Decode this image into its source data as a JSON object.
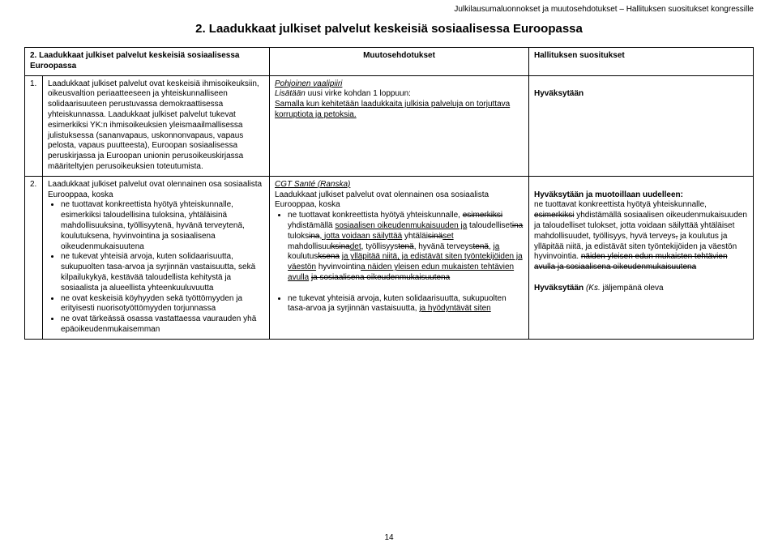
{
  "header": "Julkilausumaluonnokset ja muutosehdotukset – Hallituksen suositukset kongressille",
  "title": "2. Laadukkaat julkiset palvelut keskeisiä sosiaalisessa Euroopassa",
  "pagenum": "14",
  "table": {
    "head": {
      "col1": "2. Laadukkaat julkiset palvelut keskeisiä sosiaalisessa Euroopassa",
      "col2": "Muutosehdotukset",
      "col3": "Hallituksen suositukset"
    },
    "row1": {
      "num": "1.",
      "col1": "Laadukkaat julkiset palvelut ovat keskeisiä ihmisoikeuksiin, oikeusvaltion periaatteeseen ja yhteiskunnalliseen solidaarisuuteen perustuvassa demokraattisessa yhteiskunnassa. Laadukkaat julkiset palvelut tukevat esimerkiksi YK:n ihmisoikeuksien yleismaailmallisessa julistuksessa (sananvapaus, uskonnonvapaus, vapaus pelosta, vapaus puutteesta), Euroopan sosiaalisessa peruskirjassa ja Euroopan unionin perusoikeuskirjassa määriteltyjen perusoikeuksien toteutumista.",
      "col2_heading": "Pohjoinen vaalipiiri",
      "col2_line": "Lisätään",
      "col2_line_plain": " uusi virke kohdan 1 loppuun:",
      "col2_u1": "Samalla kun kehitetään laadukkaita julkisia palveluja on torjuttava korruptiota ja petoksia.",
      "col3": "Hyväksytään"
    },
    "row2": {
      "num": "2.",
      "col1_lead": "Laadukkaat julkiset palvelut ovat olennainen osa sosiaalista Eurooppaa, koska",
      "col1_bullets": [
        "ne tuottavat konkreettista hyötyä yhteiskunnalle, esimerkiksi taloudellisina tuloksina, yhtäläisinä mahdollisuuksina, työllisyytenä, hyvänä terveytenä, koulutuksena, hyvinvointina ja sosiaalisena oikeudenmukaisuutena",
        "ne tukevat yhteisiä arvoja, kuten solidaarisuutta, sukupuolten tasa-arvoa ja syrjinnän vastaisuutta, sekä kilpailukykyä, kestävää taloudellista kehitystä ja sosiaalista ja alueellista yhteenkuuluvuutta",
        "ne ovat keskeisiä köyhyyden sekä työttömyyden ja erityisesti nuorisotyöttömyyden torjunnassa",
        "ne ovat tärkeässä osassa vastattaessa vaurauden yhä epäoikeudenmukaisemman"
      ],
      "col2_heading": "CGT Santé (Ranska)",
      "col2_lead": "Laadukkaat julkiset palvelut ovat olennainen osa sosiaalista Eurooppaa, koska",
      "col2_b1_a": "ne tuottavat konkreettista hyötyä yhteiskunnalle, ",
      "col2_b1_s1": "esimerkiksi",
      "col2_b1_b": " yhdistämällä ",
      "col2_b1_u1": "sosiaalisen oikeudenmukaisuuden ja",
      "col2_b1_c": " taloudelliset",
      "col2_b1_s2": "ina",
      "col2_b1_d": " tuloks",
      "col2_b1_s3": "ina",
      "col2_b1_u2": ", jotta voidaan säilyttää",
      "col2_b1_e": " yhtäläi",
      "col2_b1_s4": "sinä",
      "col2_b1_u3": "set",
      "col2_b1_f": " mahdollisuu",
      "col2_b1_s5": "ksina",
      "col2_b1_u4": "det",
      "col2_b1_g": ", työllisyys",
      "col2_b1_s6": "tenä",
      "col2_b1_h": ", hyvänä terveys",
      "col2_b1_s7": "tenä",
      "col2_b1_i": ", ",
      "col2_b1_u5": "ja",
      "col2_b1_j": " koulutus",
      "col2_b1_s8": "ksena",
      "col2_b1_k": " ",
      "col2_b1_u6": "ja ylläpitää niitä, ja edistävät siten työntekijöiden ja väestön",
      "col2_b1_l": " hyvinvointin",
      "col2_b1_u7": "a näiden yleisen edun mukaisten tehtävien avulla",
      "col2_b1_m": " ",
      "col2_b1_s9": "ja sosiaalisena oikeudenmukaisuutena",
      "col2_b2_a": "ne tukevat yhteisiä arvoja, kuten solidaarisuutta, sukupuolten tasa-arvoa ja syrjinnän vastaisuutta, ",
      "col2_b2_u1": "ja hyödyntävät siten",
      "col3_t1": "Hyväksytään ja muotoillaan uudelleen:",
      "col3_p1_a": "ne tuottavat konkreettista hyötyä yhteiskunnalle, ",
      "col3_p1_s1": "esimerkiksi",
      "col3_p1_b": " yhdistämällä sosiaalisen oikeudenmukaisuuden ja taloudelliset tulokset, jotta voidaan säilyttää yhtäläiset mahdollisuudet, työllisyys, hyvä terveys",
      "col3_p1_s2": ",",
      "col3_p1_c": " ja koulutus ja ylläpitää niitä, ja edistävät siten työntekijöiden ja väestön hyvinvointia. ",
      "col3_p1_s3": "näiden yleisen edun mukaisten tehtävien avulla ja sosiaalisena oikeudenmukaisuutena",
      "col3_t2_a": "Hyväksytään ",
      "col3_t2_b": "(Ks.",
      "col3_t2_c": " jäljempänä oleva"
    }
  },
  "colors": {
    "text": "#000000",
    "bg": "#ffffff",
    "border": "#000000"
  }
}
